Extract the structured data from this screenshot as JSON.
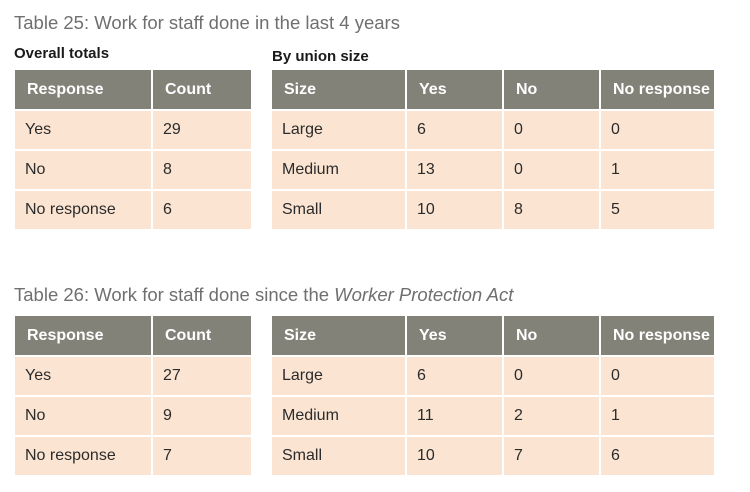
{
  "tables": [
    {
      "caption": "Table 25: Work for staff done in the last 4 years",
      "caption_em": "",
      "overall_label": "Overall totals",
      "size_label": "By union size",
      "overall": {
        "headers": [
          "Response",
          "Count"
        ],
        "rows": [
          [
            "Yes",
            "29"
          ],
          [
            "No",
            "8"
          ],
          [
            "No response",
            "6"
          ]
        ]
      },
      "by_size": {
        "headers": [
          "Size",
          "Yes",
          "No",
          "No response"
        ],
        "rows": [
          [
            "Large",
            "6",
            "0",
            "0"
          ],
          [
            "Medium",
            "13",
            "0",
            "1"
          ],
          [
            "Small",
            "10",
            "8",
            "5"
          ]
        ]
      }
    },
    {
      "caption": "Table 26: Work for staff done since the ",
      "caption_em": "Worker Protection Act",
      "overall_label": "",
      "size_label": "",
      "overall": {
        "headers": [
          "Response",
          "Count"
        ],
        "rows": [
          [
            "Yes",
            "27"
          ],
          [
            "No",
            "9"
          ],
          [
            "No response",
            "7"
          ]
        ]
      },
      "by_size": {
        "headers": [
          "Size",
          "Yes",
          "No",
          "No response"
        ],
        "rows": [
          [
            "Large",
            "6",
            "0",
            "0"
          ],
          [
            "Medium",
            "11",
            "2",
            "1"
          ],
          [
            "Small",
            "10",
            "7",
            "6"
          ]
        ]
      }
    }
  ],
  "colors": {
    "header_bg": "#828279",
    "cell_bg": "#fbe5d2",
    "caption_text": "#6f6f6f"
  }
}
